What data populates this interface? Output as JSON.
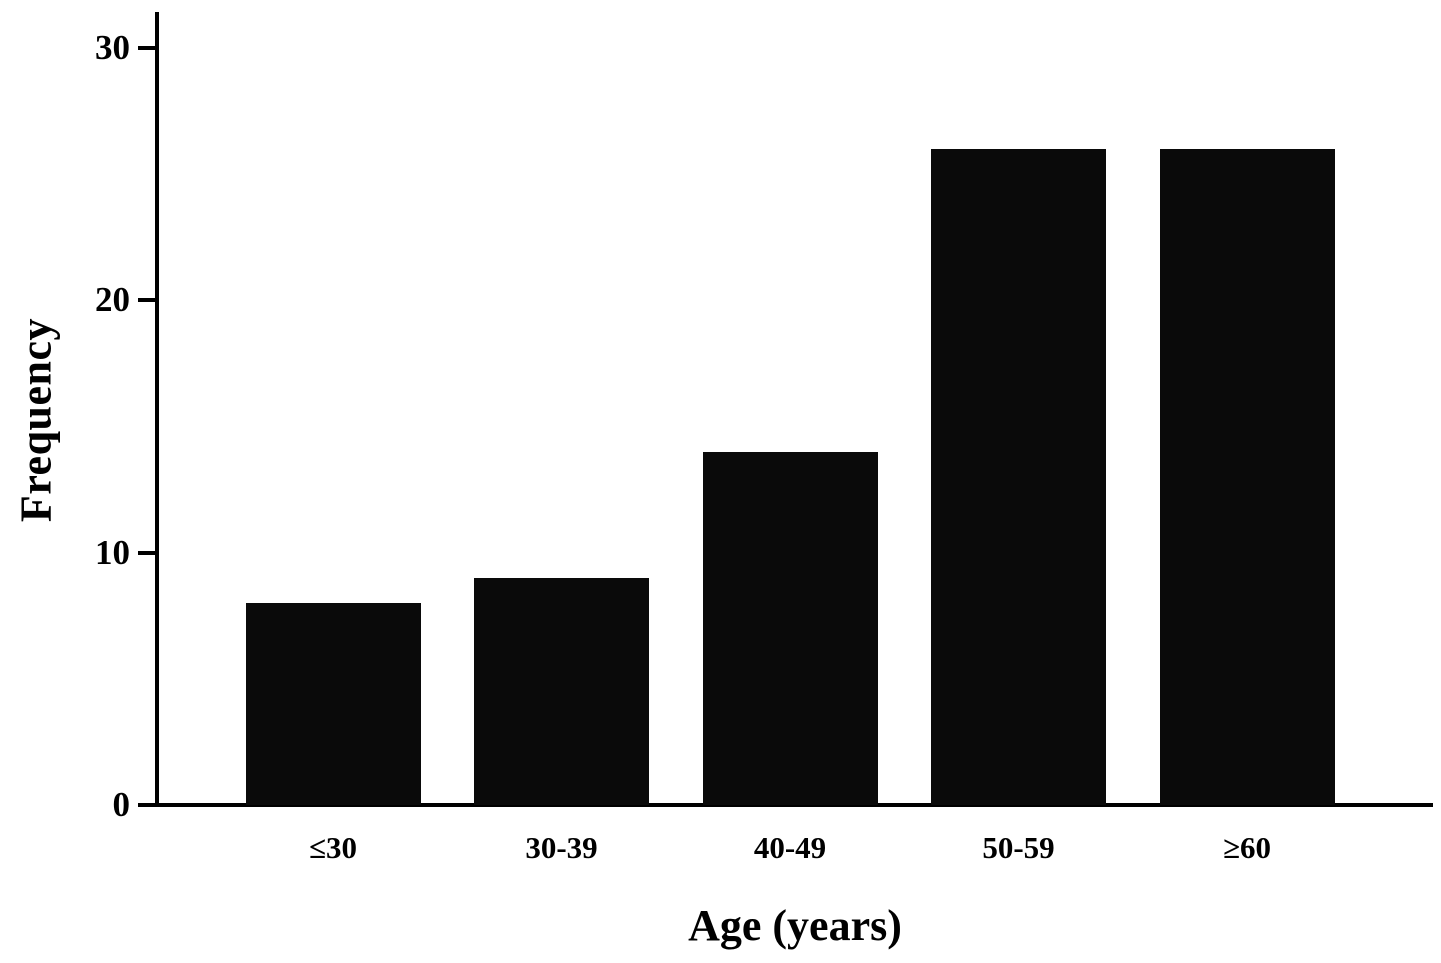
{
  "chart_data": {
    "type": "bar",
    "title": "",
    "xlabel": "Age (years)",
    "ylabel": "Frequency",
    "categories": [
      "≤30",
      "30-39",
      "40-49",
      "50-59",
      "≥60"
    ],
    "values": [
      8,
      9,
      14,
      26,
      26
    ],
    "yticks": [
      0,
      10,
      20,
      30
    ],
    "ylim": [
      0,
      30
    ],
    "bar_color": "#0a0a0a",
    "background": "#ffffff",
    "grid": false,
    "legend": "none"
  }
}
